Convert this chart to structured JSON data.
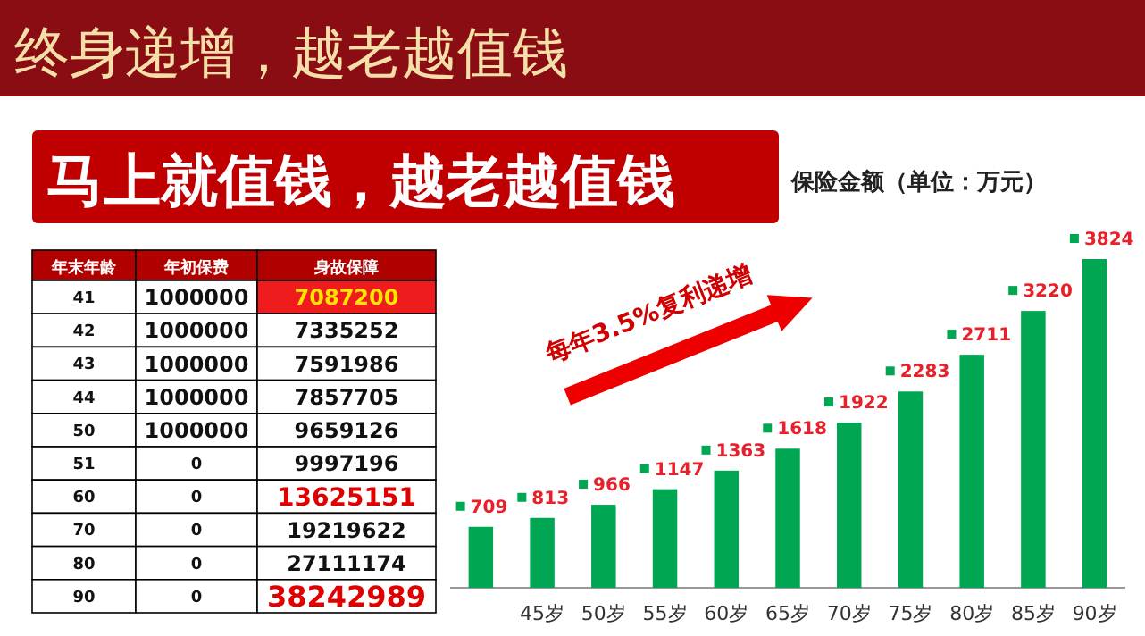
{
  "chart_data": [
    {
      "type": "other",
      "title": "终身递增，越老越值钱",
      "subtitle": "马上就值钱，越老越值钱"
    },
    {
      "type": "other",
      "categories": [
        "年末年龄",
        "年初保费",
        "身故保障"
      ],
      "annotations": [
        "41",
        "1000000",
        "7087200",
        "42",
        "1000000",
        "7335252",
        "43",
        "1000000",
        "7591986",
        "44",
        "1000000",
        "7857705",
        "50",
        "1000000",
        "9659126",
        "51",
        "0",
        "9997196",
        "60",
        "0",
        "13625151",
        "70",
        "0",
        "19219622",
        "80",
        "0",
        "27111174",
        "90",
        "0",
        "38242989"
      ]
    },
    {
      "type": "bar",
      "title": "保险金额（单位：万元）",
      "categories": [
        null,
        "45岁",
        "50岁",
        "55岁",
        "60岁",
        "65岁",
        "70岁",
        "75岁",
        "80岁",
        "85岁",
        "90岁"
      ],
      "values": [
        709,
        813,
        966,
        1147,
        1363,
        1618,
        1922,
        2283,
        2711,
        3220,
        3824
      ],
      "color": "#00a651",
      "data_labels": true,
      "annotations": [
        "每年3.5%复利递增"
      ]
    }
  ]
}
